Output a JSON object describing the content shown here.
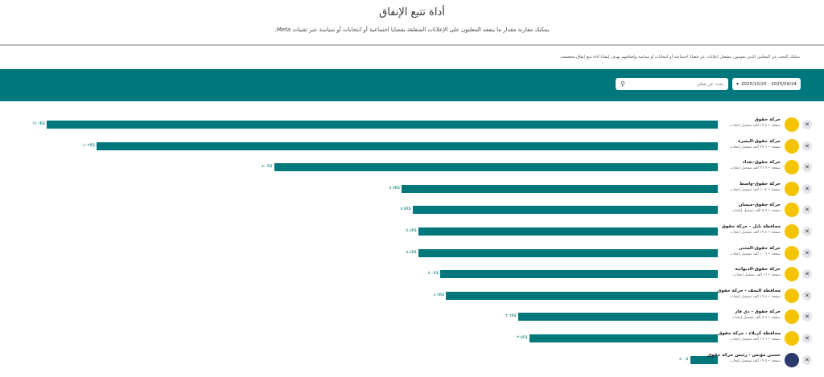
{
  "header": {
    "title": "أداة تتبع الإنفاق",
    "subtitle": "يمكنك مقارنة مقدار ما ينفقه المعلنون على الإعلانات المتعلقة بقضايا اجتماعية أو انتخابات أو سياسة عبر تقنيات Meta."
  },
  "note": "يمكنك البحث عن المعلنين الذين يقومون بتشغيل إعلانات عن قضايا اجتماعية أو انتخابات أو سياسة وإضافتهم بهدف إنشاء أداة تتبع إنفاق مخصصة.",
  "toolbar": {
    "date_range": "2025/10/23 - 2025/09/24",
    "search_placeholder": "بحث عن معلن"
  },
  "colors": {
    "accent": "#00777a",
    "avatar": "#f5c400"
  },
  "chart_data": {
    "type": "bar",
    "unit": "K$",
    "max": 12.1,
    "advertisers": [
      {
        "name": "حركة حقوق",
        "desc": "صفحة • ١٩.٨ ألف تسجيل إعجاب",
        "value": 12.1,
        "label": "١٢.١K$"
      },
      {
        "name": "حركة حقوق-البصرة",
        "desc": "صفحة • ٢٧.٦ ألف تسجيل إعجاب",
        "value": 11.2,
        "label": "١١.٢K$"
      },
      {
        "name": "حركة حقوق-بغداد",
        "desc": "صفحة • ٣٦.٩ ألف تسجيل إعجاب",
        "value": 8.0,
        "label": "٨.٠K$"
      },
      {
        "name": "حركة حقوق-واسط",
        "desc": "صفحة • ١٠.٤ ألف تسجيل إعجاب",
        "value": 5.7,
        "label": "٥.٧K$"
      },
      {
        "name": "حركة حقوق-ميسان",
        "desc": "صفحة • ٥.٩ ألف تسجيل إعجاب",
        "value": 5.5,
        "label": "٥.٥K$"
      },
      {
        "name": "محافظة بابل - حركة حقوق",
        "desc": "صفحة • ١٩.٨ ألف تسجيل إعجاب",
        "value": 5.4,
        "label": "٥.٤K$"
      },
      {
        "name": "حركة حقوق-المثنى",
        "desc": "صفحة • ١٠.٦ ألف تسجيل إعجاب",
        "value": 5.4,
        "label": "٥.٤K$"
      },
      {
        "name": "حركة حقوق-الديوانية",
        "desc": "صفحة • ١٦ ألف تسجيل إعجاب",
        "value": 5.0,
        "label": "٥.٠K$"
      },
      {
        "name": "محافظة النجف - حركة حقوق",
        "desc": "صفحة • ١٩.٨ ألف تسجيل إعجاب",
        "value": 4.9,
        "label": "٤.٩K$"
      },
      {
        "name": "حركة حقوق - ذي قار",
        "desc": "صفحة • ٨.٦ ألف تسجيل إعجاب",
        "value": 3.6,
        "label": "٣.٦K$"
      },
      {
        "name": "محافظة كربلاء - حركة حقوق",
        "desc": "صفحة • ١٦.٦ ألف تسجيل إعجاب",
        "value": 3.4,
        "label": "٣.٤K$"
      },
      {
        "name": "حسين مؤنس - رئيس حركة حقوق",
        "desc": "صفحة • ١٩.٥ ألف تسجيل إعجاب",
        "value": 0.5,
        "label": "٥٠٠$",
        "photo": true
      }
    ]
  }
}
